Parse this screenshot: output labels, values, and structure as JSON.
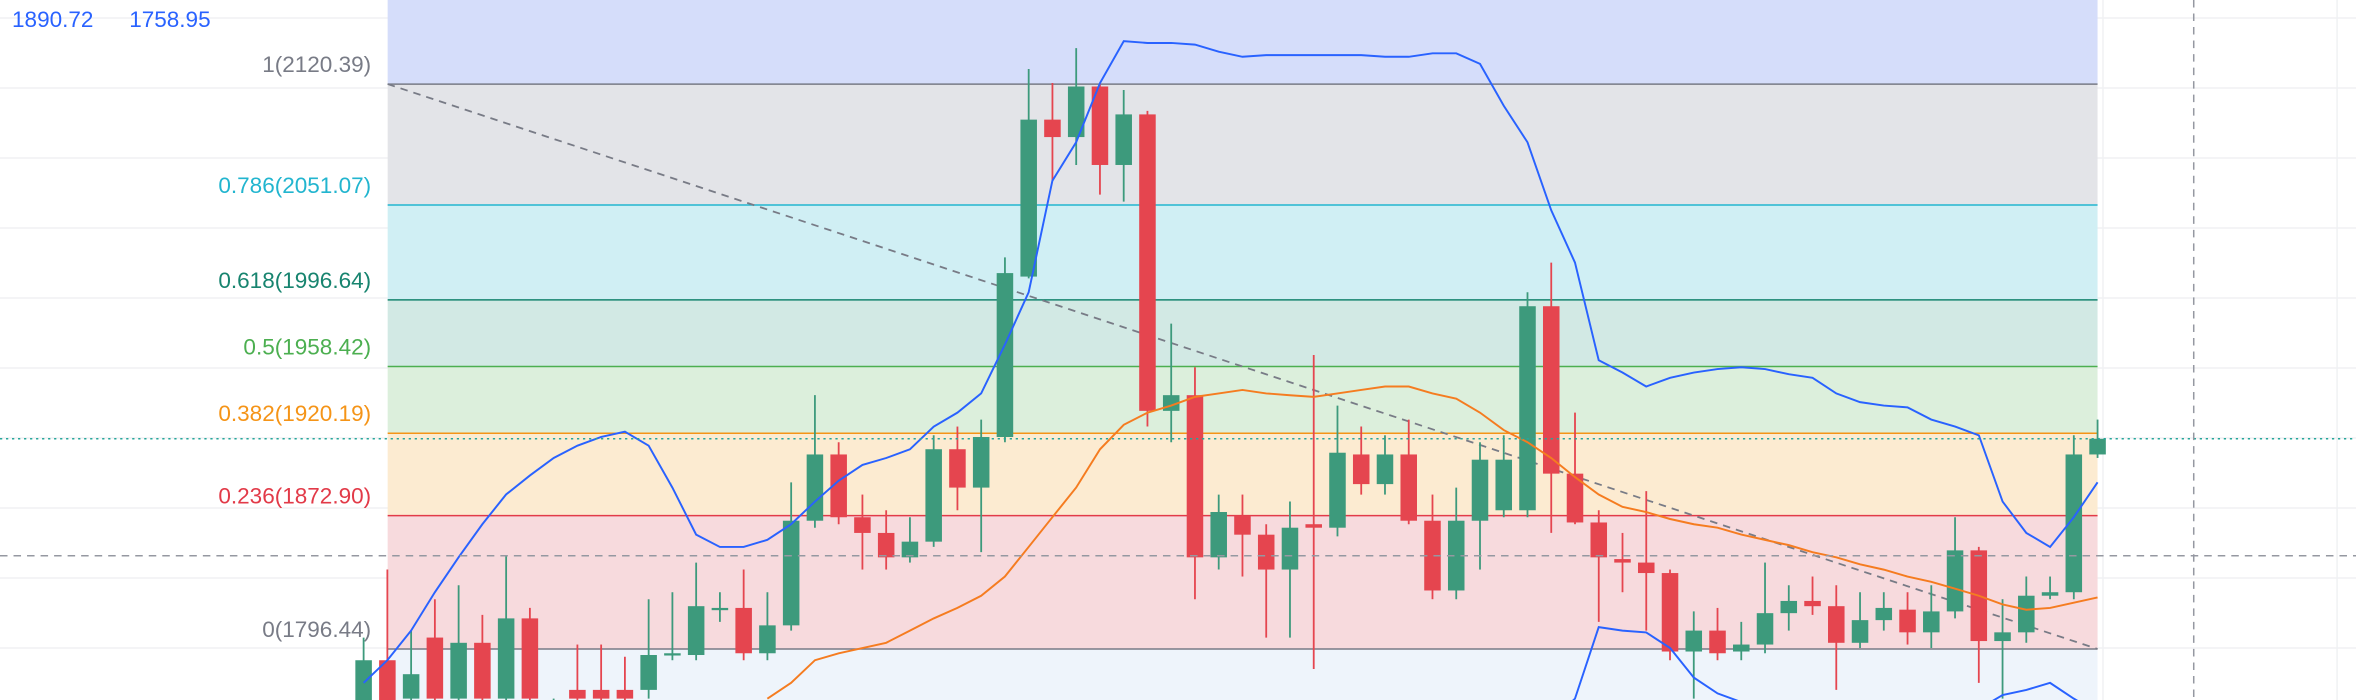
{
  "chart_data": {
    "type": "candlestick",
    "legend_values": [
      1890.72,
      1758.95
    ],
    "ylim": [
      1767.2,
      2168.6
    ],
    "up_color": "#3d9a7c",
    "down_color": "#e5454f",
    "open": [
      1764,
      1790,
      1768,
      1803,
      1768,
      1800,
      1768,
      1814,
      1761,
      1773,
      1773,
      1773,
      1773,
      1793,
      1793,
      1820,
      1820,
      1794,
      1810,
      1870,
      1908,
      1872,
      1863,
      1849,
      1858,
      1911,
      1889,
      1918,
      2010,
      2100,
      2090,
      2119,
      2074,
      2103,
      1933,
      1942,
      1849,
      1873,
      1862,
      1842,
      1868,
      1866,
      1908,
      1891,
      1908,
      1870,
      1830,
      1870,
      1876,
      1876,
      1993,
      1897,
      1869,
      1848,
      1846,
      1840,
      1795,
      1807,
      1795,
      1799,
      1817,
      1824,
      1821,
      1800,
      1813,
      1819,
      1806,
      1818,
      1853,
      1801,
      1806,
      1827,
      1829,
      1908
    ],
    "high": [
      1803,
      1842,
      1807,
      1825,
      1833,
      1816,
      1850,
      1820,
      1768,
      1799,
      1799,
      1792,
      1825,
      1829,
      1846,
      1829,
      1842,
      1829,
      1892,
      1942,
      1915,
      1885,
      1876,
      1872,
      1919,
      1924,
      1928,
      2021,
      2129,
      2121,
      2141,
      2121,
      2117,
      2105,
      1983,
      1958,
      1885,
      1885,
      1868,
      1881,
      1965,
      1936,
      1924,
      1919,
      1928,
      1885,
      1889,
      1915,
      1919,
      2001,
      2018,
      1932,
      1876,
      1863,
      1887,
      1842,
      1818,
      1820,
      1812,
      1846,
      1833,
      1838,
      1833,
      1829,
      1829,
      1829,
      1833,
      1872,
      1855,
      1825,
      1838,
      1838,
      1919,
      1928
    ],
    "low": [
      1760,
      1760,
      1763,
      1764,
      1764,
      1764,
      1764,
      1764,
      1758,
      1764,
      1764,
      1764,
      1768,
      1790,
      1790,
      1812,
      1790,
      1790,
      1807,
      1866,
      1868,
      1842,
      1842,
      1846,
      1855,
      1876,
      1852,
      1915,
      2009,
      2065,
      2074,
      2057,
      2053,
      1924,
      1915,
      1825,
      1842,
      1838,
      1803,
      1803,
      1785,
      1861,
      1885,
      1885,
      1868,
      1825,
      1825,
      1842,
      1872,
      1872,
      1863,
      1868,
      1812,
      1829,
      1807,
      1790,
      1768,
      1790,
      1790,
      1794,
      1807,
      1816,
      1773,
      1797,
      1807,
      1799,
      1797,
      1814,
      1777,
      1768,
      1800,
      1825,
      1825,
      1906
    ],
    "close": [
      1790,
      1764,
      1782,
      1768,
      1800,
      1768,
      1814,
      1768,
      1764,
      1768,
      1768,
      1768,
      1793,
      1794,
      1821,
      1820,
      1794,
      1810,
      1870,
      1908,
      1872,
      1863,
      1849,
      1858,
      1911,
      1889,
      1918,
      2012,
      2100,
      2090,
      2119,
      2074,
      2103,
      1933,
      1942,
      1849,
      1875,
      1862,
      1842,
      1866,
      1866,
      1909,
      1891,
      1908,
      1870,
      1830,
      1870,
      1905,
      1905,
      1993,
      1897,
      1869,
      1849,
      1846,
      1840,
      1795,
      1807,
      1794,
      1799,
      1817,
      1824,
      1821,
      1800,
      1813,
      1820,
      1806,
      1818,
      1853,
      1801,
      1806,
      1827,
      1829,
      1908,
      1917
    ],
    "lines": [
      {
        "color": "#2962ff",
        "values": [
          1777,
          1790,
          1807,
          1829,
          1849,
          1868,
          1885,
          1896,
          1906,
          1913,
          1918,
          1921,
          1913,
          1889,
          1862,
          1855,
          1855,
          1859,
          1868,
          1881,
          1893,
          1902,
          1906,
          1911,
          1924,
          1932,
          1943,
          1971,
          2001,
          2065,
          2087,
          2121,
          2145,
          2144,
          2144,
          2143,
          2139,
          2136,
          2137,
          2137,
          2137,
          2137,
          2137,
          2136,
          2136,
          2138,
          2138,
          2132,
          2108,
          2087,
          2048,
          2018,
          1962,
          1955,
          1947,
          1952,
          1955,
          1957,
          1958,
          1957,
          1954,
          1952,
          1943,
          1938,
          1936,
          1935,
          1928,
          1924,
          1919,
          1881,
          1863,
          1855,
          1872,
          1892
        ]
      },
      {
        "color": "#2962ff",
        "values": [
          null,
          null,
          null,
          null,
          null,
          null,
          null,
          null,
          null,
          null,
          null,
          null,
          null,
          null,
          null,
          null,
          null,
          null,
          null,
          null,
          null,
          null,
          null,
          null,
          null,
          null,
          null,
          null,
          null,
          null,
          null,
          null,
          null,
          null,
          null,
          null,
          null,
          null,
          null,
          null,
          null,
          null,
          null,
          null,
          null,
          null,
          null,
          null,
          null,
          null,
          1755,
          1768,
          1809,
          1807,
          1806,
          1797,
          1780,
          1771,
          1766,
          1760,
          1757,
          1755,
          1754,
          1753,
          1752,
          1752,
          1753,
          1755,
          1762,
          1770,
          1773,
          1777,
          1768,
          1760
        ]
      },
      {
        "color": "#f57c20",
        "values": [
          null,
          null,
          null,
          null,
          null,
          null,
          null,
          null,
          null,
          null,
          null,
          null,
          null,
          null,
          null,
          null,
          null,
          1768,
          1777,
          1790,
          1794,
          1797,
          1800,
          1807,
          1814,
          1820,
          1827,
          1838,
          1855,
          1872,
          1889,
          1911,
          1925,
          1932,
          1936,
          1941,
          1943,
          1945,
          1943,
          1942,
          1941,
          1943,
          1945,
          1947,
          1947,
          1943,
          1940,
          1932,
          1922,
          1915,
          1906,
          1895,
          1885,
          1878,
          1875,
          1871,
          1868,
          1866,
          1862,
          1859,
          1856,
          1852,
          1849,
          1845,
          1842,
          1838,
          1835,
          1831,
          1827,
          1822,
          1819,
          1820,
          1823,
          1826
        ]
      }
    ],
    "fib_fill_above": "#d5ddfa",
    "fib_fill_below": "#eef4fb",
    "fib_levels": [
      {
        "label": "1(2120.39)",
        "value": 2120.39,
        "color": "#787b86",
        "fill": "#e3e4e8"
      },
      {
        "label": "0.786(2051.07)",
        "value": 2051.07,
        "color": "#22b5cf",
        "fill": "#d0eff4"
      },
      {
        "label": "0.618(1996.64)",
        "value": 1996.64,
        "color": "#17846f",
        "fill": "#d2e9e4"
      },
      {
        "label": "0.5(1958.42)",
        "value": 1958.42,
        "color": "#4caf50",
        "fill": "#dcefdc"
      },
      {
        "label": "0.382(1920.19)",
        "value": 1920.19,
        "color": "#f59417",
        "fill": "#fcebd1"
      },
      {
        "label": "0.236(1872.90)",
        "value": 1872.9,
        "color": "#e23a48",
        "fill": "#f7dadd"
      },
      {
        "label": "0(1796.44)",
        "value": 1796.44,
        "color": "#787b86"
      }
    ]
  }
}
